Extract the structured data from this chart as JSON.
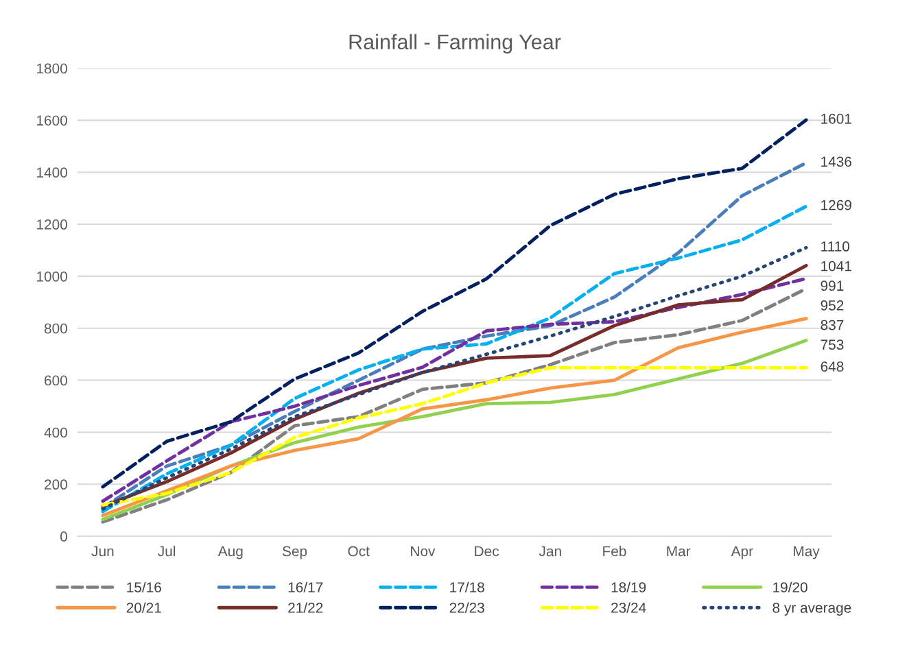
{
  "chart_data": {
    "type": "line",
    "title": "Rainfall - Farming Year",
    "categories": [
      "Jun",
      "Jul",
      "Aug",
      "Sep",
      "Oct",
      "Nov",
      "Dec",
      "Jan",
      "Feb",
      "Mar",
      "Apr",
      "May"
    ],
    "ylim": [
      0,
      1800
    ],
    "yticks": [
      0,
      200,
      400,
      600,
      800,
      1000,
      1200,
      1400,
      1600,
      1800
    ],
    "grid": "y",
    "legend": "bottom",
    "marker": "none",
    "series": [
      {
        "name": "15/16",
        "color": "#808080",
        "line_style": "dashed",
        "values": [
          55,
          140,
          245,
          425,
          460,
          565,
          590,
          660,
          745,
          775,
          830,
          952
        ]
      },
      {
        "name": "16/17",
        "color": "#4a7ebb",
        "line_style": "dashed",
        "values": [
          110,
          270,
          350,
          480,
          600,
          720,
          770,
          810,
          920,
          1090,
          1310,
          1436
        ]
      },
      {
        "name": "17/18",
        "color": "#00b0f0",
        "line_style": "dashed",
        "values": [
          95,
          240,
          350,
          530,
          640,
          720,
          740,
          840,
          1010,
          1070,
          1140,
          1269
        ]
      },
      {
        "name": "18/19",
        "color": "#7030a0",
        "line_style": "dashed",
        "values": [
          135,
          290,
          440,
          500,
          580,
          650,
          790,
          815,
          825,
          880,
          930,
          991
        ]
      },
      {
        "name": "19/20",
        "color": "#92d050",
        "line_style": "solid",
        "values": [
          65,
          160,
          270,
          360,
          420,
          460,
          510,
          515,
          545,
          605,
          665,
          753
        ]
      },
      {
        "name": "20/21",
        "color": "#f79646",
        "line_style": "solid",
        "values": [
          80,
          175,
          270,
          330,
          375,
          490,
          525,
          570,
          600,
          725,
          785,
          837
        ]
      },
      {
        "name": "21/22",
        "color": "#772c2a",
        "line_style": "solid",
        "values": [
          115,
          210,
          320,
          450,
          550,
          630,
          685,
          695,
          810,
          890,
          910,
          1041
        ]
      },
      {
        "name": "22/23",
        "color": "#002060",
        "line_style": "dashed",
        "values": [
          190,
          365,
          440,
          605,
          705,
          865,
          990,
          1195,
          1315,
          1375,
          1415,
          1601
        ]
      },
      {
        "name": "23/24",
        "color": "#ffff00",
        "line_style": "dashed",
        "values": [
          120,
          165,
          245,
          380,
          455,
          510,
          590,
          648,
          648,
          648,
          648,
          648
        ]
      },
      {
        "name": "8 yr average",
        "color": "#264478",
        "line_style": "dotted",
        "values": [
          105,
          225,
          335,
          460,
          545,
          630,
          700,
          770,
          845,
          925,
          1000,
          1110
        ]
      }
    ],
    "annotations": [
      {
        "text": "1601",
        "x": "May",
        "y": 1601
      },
      {
        "text": "1436",
        "x": "May",
        "y": 1436
      },
      {
        "text": "1269",
        "x": "May",
        "y": 1269
      },
      {
        "text": "1110",
        "x": "May",
        "y": 1110
      },
      {
        "text": "1041",
        "x": "May",
        "y": 1041
      },
      {
        "text": "991",
        "x": "May",
        "y": 991
      },
      {
        "text": "952",
        "x": "May",
        "y": 952
      },
      {
        "text": "837",
        "x": "May",
        "y": 837
      },
      {
        "text": "753",
        "x": "May",
        "y": 753
      },
      {
        "text": "648",
        "x": "May",
        "y": 648
      }
    ]
  }
}
